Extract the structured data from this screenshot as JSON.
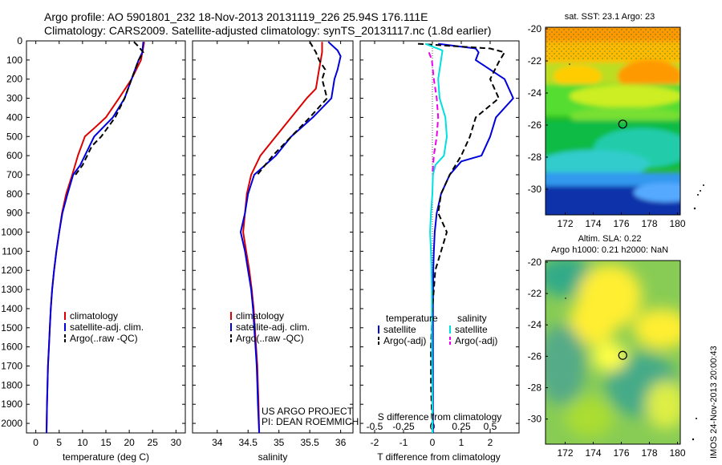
{
  "header": {
    "line1": "Argo profile: AO 5901801_232 18-Nov-2013 20131119_226 25.94S 176.111E",
    "line2": "Climatology: CARS2009. Satellite-adjusted climatology: synTS_20131117.nc (1.8d earlier)"
  },
  "colors": {
    "climatology": "#dd0000",
    "satellite": "#0000dd",
    "argo": "#000000",
    "cyan": "#00e0e0",
    "magenta": "#ee00ee"
  },
  "credits": {
    "project": "US ARGO PROJECT",
    "pi": "PI: DEAN ROEMMICH"
  },
  "watermark": "IMOS 24-Nov-2013 20:00:43",
  "chart_data": [
    {
      "id": "temperature",
      "type": "line",
      "xlabel": "temperature (deg C)",
      "ylabel": "",
      "xlim": [
        -2,
        32
      ],
      "ylim": [
        0,
        2050
      ],
      "y_reversed": true,
      "xticks": [
        0,
        5,
        10,
        15,
        20,
        25,
        30
      ],
      "yticks": [
        0,
        100,
        200,
        300,
        400,
        500,
        600,
        700,
        800,
        900,
        1000,
        1100,
        1200,
        1300,
        1400,
        1500,
        1600,
        1700,
        1800,
        1900,
        2000
      ],
      "legend": [
        "climatology",
        "satellite-adj. clim.",
        "Argo(..raw -QC)"
      ],
      "series": [
        {
          "name": "climatology",
          "color": "#dd0000",
          "dash": "",
          "points": [
            [
              23.2,
              5
            ],
            [
              22.5,
              100
            ],
            [
              20.5,
              200
            ],
            [
              17.8,
              300
            ],
            [
              15.0,
              400
            ],
            [
              12.8,
              450
            ],
            [
              10.5,
              500
            ],
            [
              9.0,
              600
            ],
            [
              7.8,
              700
            ],
            [
              6.5,
              800
            ],
            [
              5.6,
              900
            ],
            [
              5.0,
              1000
            ],
            [
              4.4,
              1100
            ],
            [
              3.9,
              1200
            ],
            [
              3.5,
              1300
            ],
            [
              3.2,
              1400
            ],
            [
              3.0,
              1500
            ],
            [
              2.8,
              1600
            ],
            [
              2.6,
              1700
            ],
            [
              2.5,
              1800
            ],
            [
              2.4,
              1900
            ],
            [
              2.3,
              2050
            ]
          ]
        },
        {
          "name": "satellite-adj. clim.",
          "color": "#0000dd",
          "dash": "",
          "points": [
            [
              23.0,
              5
            ],
            [
              22.8,
              60
            ],
            [
              22.0,
              100
            ],
            [
              20.5,
              200
            ],
            [
              19.0,
              300
            ],
            [
              16.5,
              400
            ],
            [
              14.5,
              450
            ],
            [
              12.5,
              500
            ],
            [
              10.5,
              600
            ],
            [
              9.5,
              650
            ],
            [
              8.0,
              700
            ],
            [
              6.8,
              800
            ],
            [
              5.7,
              900
            ],
            [
              5.0,
              1000
            ],
            [
              4.4,
              1100
            ],
            [
              3.9,
              1200
            ],
            [
              3.5,
              1300
            ],
            [
              3.2,
              1400
            ],
            [
              3.0,
              1500
            ],
            [
              2.8,
              1600
            ],
            [
              2.6,
              1700
            ],
            [
              2.5,
              1800
            ],
            [
              2.4,
              1900
            ],
            [
              2.3,
              2050
            ]
          ]
        },
        {
          "name": "Argo(..raw -QC)",
          "color": "#000000",
          "dash": "7,4",
          "points": [
            [
              21.0,
              5
            ],
            [
              22.0,
              30
            ],
            [
              23.0,
              60
            ],
            [
              22.0,
              100
            ],
            [
              20.5,
              200
            ],
            [
              19.0,
              300
            ],
            [
              17.0,
              400
            ],
            [
              15.5,
              450
            ],
            [
              14.0,
              500
            ],
            [
              12.0,
              550
            ],
            [
              10.0,
              650
            ],
            [
              8.5,
              700
            ]
          ]
        }
      ]
    },
    {
      "id": "salinity",
      "type": "line",
      "xlabel": "salinity",
      "ylabel": "",
      "xlim": [
        33.6,
        36.2
      ],
      "ylim": [
        0,
        2050
      ],
      "y_reversed": true,
      "xticks": [
        34,
        34.5,
        35,
        35.5,
        36
      ],
      "xticklabels": [
        "34",
        "34.5",
        "35",
        "35.5",
        "36"
      ],
      "legend": [
        "climatology",
        "satellite-adj. clim.",
        "Argo(..raw -QC)"
      ],
      "series": [
        {
          "name": "climatology",
          "color": "#dd0000",
          "dash": "",
          "points": [
            [
              35.7,
              5
            ],
            [
              35.7,
              60
            ],
            [
              35.65,
              150
            ],
            [
              35.6,
              250
            ],
            [
              35.45,
              300
            ],
            [
              35.2,
              400
            ],
            [
              34.95,
              500
            ],
            [
              34.7,
              600
            ],
            [
              34.55,
              700
            ],
            [
              34.48,
              800
            ],
            [
              34.45,
              900
            ],
            [
              34.42,
              1000
            ],
            [
              34.47,
              1100
            ],
            [
              34.52,
              1200
            ],
            [
              34.56,
              1300
            ],
            [
              34.59,
              1400
            ],
            [
              34.61,
              1500
            ],
            [
              34.63,
              1600
            ],
            [
              34.65,
              1700
            ],
            [
              34.66,
              1800
            ],
            [
              34.67,
              1900
            ],
            [
              34.68,
              2050
            ]
          ]
        },
        {
          "name": "satellite-adj. clim.",
          "color": "#0000dd",
          "dash": "",
          "points": [
            [
              35.8,
              5
            ],
            [
              35.95,
              50
            ],
            [
              36.0,
              80
            ],
            [
              35.95,
              150
            ],
            [
              35.9,
              200
            ],
            [
              35.85,
              300
            ],
            [
              35.55,
              400
            ],
            [
              35.2,
              500
            ],
            [
              34.95,
              600
            ],
            [
              34.6,
              700
            ],
            [
              34.5,
              800
            ],
            [
              34.45,
              900
            ],
            [
              34.38,
              1000
            ],
            [
              34.45,
              1100
            ],
            [
              34.5,
              1200
            ],
            [
              34.55,
              1300
            ],
            [
              34.58,
              1400
            ],
            [
              34.6,
              1500
            ],
            [
              34.62,
              1600
            ],
            [
              34.64,
              1700
            ],
            [
              34.65,
              1800
            ],
            [
              34.66,
              1900
            ],
            [
              34.68,
              2050
            ]
          ]
        },
        {
          "name": "Argo(..raw -QC)",
          "color": "#000000",
          "dash": "7,4",
          "points": [
            [
              35.5,
              5
            ],
            [
              35.6,
              60
            ],
            [
              35.65,
              100
            ],
            [
              35.75,
              150
            ],
            [
              35.7,
              200
            ],
            [
              35.78,
              300
            ],
            [
              35.5,
              400
            ],
            [
              35.2,
              500
            ],
            [
              34.9,
              600
            ],
            [
              34.65,
              700
            ]
          ]
        }
      ]
    },
    {
      "id": "differences",
      "type": "line",
      "xlabel": "T difference from climatology",
      "x2label": "S difference from climatology",
      "ylabel": "",
      "xlim": [
        -2.5,
        3.0
      ],
      "ylim": [
        0,
        2050
      ],
      "y_reversed": true,
      "xticks": [
        -2,
        -1,
        0,
        1,
        2
      ],
      "xticklabels": [
        "-2",
        "-1",
        "0",
        "1",
        "2"
      ],
      "x2ticks": [
        -0.5,
        -0.25,
        0,
        0.25,
        0.5
      ],
      "x2ticklabels": [
        "-0.5",
        "-0.25",
        "0",
        "0.25",
        "0.5"
      ],
      "legend_groups": [
        {
          "title": "temperature",
          "entries": [
            "satellite",
            "Argo(-adj)"
          ]
        },
        {
          "title": "salinity",
          "entries": [
            "satellite",
            "Argo(-adj)"
          ]
        }
      ],
      "series": [
        {
          "name": "temperature satellite",
          "color": "#0000dd",
          "dash": "",
          "points": [
            [
              0.2,
              15
            ],
            [
              1.5,
              40
            ],
            [
              1.6,
              60
            ],
            [
              1.5,
              100
            ],
            [
              2.5,
              200
            ],
            [
              2.8,
              300
            ],
            [
              2.2,
              400
            ],
            [
              2.0,
              500
            ],
            [
              1.7,
              600
            ],
            [
              1.0,
              630
            ],
            [
              0.6,
              700
            ],
            [
              0.3,
              800
            ],
            [
              0.15,
              900
            ],
            [
              0.08,
              1000
            ],
            [
              0.05,
              1100
            ],
            [
              0.03,
              1200
            ],
            [
              0.02,
              1400
            ],
            [
              0.02,
              1600
            ],
            [
              0.02,
              1800
            ],
            [
              0.02,
              2050
            ]
          ]
        },
        {
          "name": "temperature Argo(-adj)",
          "color": "#000000",
          "dash": "7,4",
          "points": [
            [
              -0.5,
              15
            ],
            [
              2.0,
              40
            ],
            [
              2.5,
              60
            ],
            [
              2.3,
              110
            ],
            [
              2.0,
              200
            ],
            [
              2.3,
              300
            ],
            [
              1.5,
              400
            ],
            [
              1.3,
              500
            ],
            [
              1.0,
              600
            ],
            [
              0.6,
              700
            ],
            [
              0.3,
              800
            ],
            [
              0.2,
              900
            ],
            [
              0.5,
              1000
            ],
            [
              0.3,
              1100
            ],
            [
              0.1,
              1200
            ],
            [
              0.0,
              1400
            ],
            [
              -0.05,
              1600
            ],
            [
              -0.05,
              1800
            ],
            [
              0.0,
              2050
            ]
          ]
        },
        {
          "name": "salinity satellite",
          "color": "#00e0e0",
          "dash": "",
          "points": [
            [
              -0.25,
              15
            ],
            [
              0.35,
              50
            ],
            [
              0.3,
              100
            ],
            [
              0.2,
              200
            ],
            [
              0.25,
              300
            ],
            [
              0.45,
              400
            ],
            [
              0.5,
              500
            ],
            [
              0.4,
              600
            ],
            [
              0.1,
              650
            ],
            [
              0.02,
              700
            ],
            [
              0.0,
              800
            ],
            [
              -0.05,
              900
            ],
            [
              -0.08,
              1000
            ],
            [
              -0.05,
              1100
            ],
            [
              -0.03,
              1200
            ],
            [
              -0.02,
              1300
            ],
            [
              -0.02,
              1500
            ],
            [
              -0.01,
              1700
            ],
            [
              0.0,
              1900
            ],
            [
              0.0,
              2050
            ]
          ]
        },
        {
          "name": "salinity Argo(-adj)",
          "color": "#ee00ee",
          "dash": "7,4",
          "points": [
            [
              -0.12,
              60
            ],
            [
              -0.02,
              100
            ],
            [
              0.05,
              200
            ],
            [
              0.15,
              300
            ],
            [
              0.2,
              400
            ],
            [
              0.15,
              500
            ],
            [
              0.05,
              600
            ],
            [
              0.0,
              700
            ]
          ]
        }
      ]
    }
  ],
  "maps": [
    {
      "id": "sst",
      "title": "sat. SST: 23.1  Argo: 23",
      "xticks": [
        172,
        174,
        176,
        178,
        180
      ],
      "yticks": [
        -20,
        -22,
        -24,
        -26,
        -28,
        -30
      ],
      "xlim": [
        170.6,
        180.2
      ],
      "ylim": [
        -31.6,
        -19.9
      ],
      "marker": [
        176.1,
        -25.94
      ]
    },
    {
      "id": "sla",
      "title_line1": "Altim. SLA: 0.22",
      "title_line2": "Argo h1000: 0.21 h2000: NaN",
      "xticks": [
        172,
        174,
        176,
        178,
        180
      ],
      "yticks": [
        -20,
        -22,
        -24,
        -26,
        -28,
        -30
      ],
      "xlim": [
        170.6,
        180.2
      ],
      "ylim": [
        -31.6,
        -19.9
      ],
      "marker": [
        176.1,
        -25.94
      ]
    }
  ]
}
